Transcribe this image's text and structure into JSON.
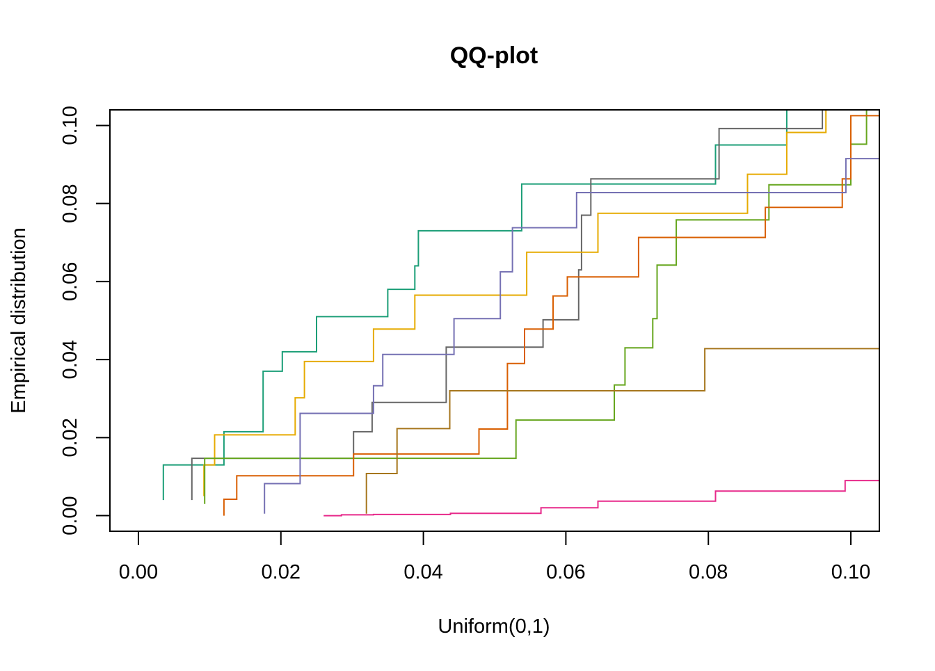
{
  "chart_data": {
    "type": "line",
    "step": true,
    "title": "QQ-plot",
    "xlabel": "Uniform(0,1)",
    "ylabel": "Empirical distribution",
    "xlim": [
      -0.004,
      0.104
    ],
    "ylim": [
      -0.004,
      0.104
    ],
    "x_ticks": [
      0.0,
      0.02,
      0.04,
      0.06,
      0.08,
      0.1
    ],
    "x_tick_labels": [
      "0.00",
      "0.02",
      "0.04",
      "0.06",
      "0.08",
      "0.10"
    ],
    "y_ticks": [
      0.0,
      0.02,
      0.04,
      0.06,
      0.08,
      0.1
    ],
    "y_tick_labels": [
      "0.00",
      "0.02",
      "0.04",
      "0.06",
      "0.08",
      "0.10"
    ],
    "grid": false,
    "legend": "none",
    "series": [
      {
        "color": "#1b9e77",
        "points": [
          [
            0.0035,
            0.004
          ],
          [
            0.0035,
            0.013
          ],
          [
            0.012,
            0.013
          ],
          [
            0.012,
            0.0215
          ],
          [
            0.0175,
            0.0215
          ],
          [
            0.0175,
            0.037
          ],
          [
            0.0202,
            0.037
          ],
          [
            0.0202,
            0.042
          ],
          [
            0.025,
            0.042
          ],
          [
            0.025,
            0.051
          ],
          [
            0.035,
            0.051
          ],
          [
            0.035,
            0.058
          ],
          [
            0.0388,
            0.058
          ],
          [
            0.0388,
            0.064
          ],
          [
            0.0393,
            0.064
          ],
          [
            0.0393,
            0.073
          ],
          [
            0.0538,
            0.073
          ],
          [
            0.0538,
            0.085
          ],
          [
            0.081,
            0.085
          ],
          [
            0.081,
            0.095
          ],
          [
            0.091,
            0.095
          ],
          [
            0.091,
            0.104
          ]
        ]
      },
      {
        "color": "#666666",
        "points": [
          [
            0.0075,
            0.004
          ],
          [
            0.0075,
            0.0147
          ],
          [
            0.0302,
            0.0147
          ],
          [
            0.0302,
            0.0215
          ],
          [
            0.0328,
            0.0215
          ],
          [
            0.0328,
            0.029
          ],
          [
            0.0432,
            0.029
          ],
          [
            0.0432,
            0.0432
          ],
          [
            0.0568,
            0.0432
          ],
          [
            0.0568,
            0.0502
          ],
          [
            0.0618,
            0.0502
          ],
          [
            0.0618,
            0.063
          ],
          [
            0.0622,
            0.063
          ],
          [
            0.0622,
            0.077
          ],
          [
            0.0635,
            0.077
          ],
          [
            0.0635,
            0.0863
          ],
          [
            0.0815,
            0.0863
          ],
          [
            0.0815,
            0.0992
          ],
          [
            0.096,
            0.0992
          ],
          [
            0.096,
            0.104
          ]
        ]
      },
      {
        "color": "#e6ab02",
        "points": [
          [
            0.0092,
            0.005
          ],
          [
            0.0092,
            0.013
          ],
          [
            0.0107,
            0.013
          ],
          [
            0.0107,
            0.0207
          ],
          [
            0.022,
            0.0207
          ],
          [
            0.022,
            0.0302
          ],
          [
            0.0233,
            0.0302
          ],
          [
            0.0233,
            0.0395
          ],
          [
            0.033,
            0.0395
          ],
          [
            0.033,
            0.0478
          ],
          [
            0.0388,
            0.0478
          ],
          [
            0.0388,
            0.0565
          ],
          [
            0.0545,
            0.0565
          ],
          [
            0.0545,
            0.0675
          ],
          [
            0.0645,
            0.0675
          ],
          [
            0.0645,
            0.0775
          ],
          [
            0.0855,
            0.0775
          ],
          [
            0.0855,
            0.0875
          ],
          [
            0.091,
            0.0875
          ],
          [
            0.091,
            0.0982
          ],
          [
            0.0965,
            0.0982
          ],
          [
            0.0965,
            0.104
          ]
        ]
      },
      {
        "color": "#66a61e",
        "points": [
          [
            0.0093,
            0.003
          ],
          [
            0.0093,
            0.0147
          ],
          [
            0.053,
            0.0147
          ],
          [
            0.053,
            0.0245
          ],
          [
            0.0668,
            0.0245
          ],
          [
            0.0668,
            0.0335
          ],
          [
            0.0683,
            0.0335
          ],
          [
            0.0683,
            0.043
          ],
          [
            0.0722,
            0.043
          ],
          [
            0.0722,
            0.0505
          ],
          [
            0.0728,
            0.0505
          ],
          [
            0.0728,
            0.0642
          ],
          [
            0.0755,
            0.0642
          ],
          [
            0.0755,
            0.0758
          ],
          [
            0.0885,
            0.0758
          ],
          [
            0.0885,
            0.0848
          ],
          [
            0.1,
            0.0848
          ],
          [
            0.1,
            0.0952
          ],
          [
            0.1022,
            0.0952
          ],
          [
            0.1022,
            0.104
          ]
        ]
      },
      {
        "color": "#d95f02",
        "points": [
          [
            0.012,
            0.0
          ],
          [
            0.012,
            0.0042
          ],
          [
            0.0138,
            0.0042
          ],
          [
            0.0138,
            0.0102
          ],
          [
            0.0302,
            0.0102
          ],
          [
            0.0302,
            0.0158
          ],
          [
            0.0478,
            0.0158
          ],
          [
            0.0478,
            0.0222
          ],
          [
            0.0518,
            0.0222
          ],
          [
            0.0518,
            0.039
          ],
          [
            0.0542,
            0.039
          ],
          [
            0.0542,
            0.0478
          ],
          [
            0.0582,
            0.0478
          ],
          [
            0.0582,
            0.0563
          ],
          [
            0.0602,
            0.0563
          ],
          [
            0.0602,
            0.0612
          ],
          [
            0.0702,
            0.0612
          ],
          [
            0.0702,
            0.0713
          ],
          [
            0.088,
            0.0713
          ],
          [
            0.088,
            0.079
          ],
          [
            0.0988,
            0.079
          ],
          [
            0.0988,
            0.0863
          ],
          [
            0.1,
            0.0863
          ],
          [
            0.1,
            0.1025
          ],
          [
            0.104,
            0.1025
          ]
        ]
      },
      {
        "color": "#7570b3",
        "points": [
          [
            0.0177,
            0.0005
          ],
          [
            0.0177,
            0.0082
          ],
          [
            0.0227,
            0.0082
          ],
          [
            0.0227,
            0.0262
          ],
          [
            0.033,
            0.0262
          ],
          [
            0.033,
            0.0333
          ],
          [
            0.0343,
            0.0333
          ],
          [
            0.0343,
            0.0413
          ],
          [
            0.0443,
            0.0413
          ],
          [
            0.0443,
            0.0505
          ],
          [
            0.0508,
            0.0505
          ],
          [
            0.0508,
            0.0625
          ],
          [
            0.0525,
            0.0625
          ],
          [
            0.0525,
            0.0738
          ],
          [
            0.0615,
            0.0738
          ],
          [
            0.0615,
            0.0828
          ],
          [
            0.0993,
            0.0828
          ],
          [
            0.0993,
            0.0915
          ],
          [
            0.104,
            0.0915
          ]
        ]
      },
      {
        "color": "#a6761d",
        "points": [
          [
            0.032,
            0.0005
          ],
          [
            0.032,
            0.0108
          ],
          [
            0.0363,
            0.0108
          ],
          [
            0.0363,
            0.0223
          ],
          [
            0.0437,
            0.0223
          ],
          [
            0.0437,
            0.032
          ],
          [
            0.0795,
            0.032
          ],
          [
            0.0795,
            0.0428
          ],
          [
            0.104,
            0.0428
          ]
        ]
      },
      {
        "color": "#e7298a",
        "points": [
          [
            0.026,
            0.0
          ],
          [
            0.0285,
            0.0
          ],
          [
            0.0285,
            0.0002
          ],
          [
            0.033,
            0.0002
          ],
          [
            0.033,
            0.0003
          ],
          [
            0.0438,
            0.0003
          ],
          [
            0.0438,
            0.0006
          ],
          [
            0.0565,
            0.0006
          ],
          [
            0.0565,
            0.002
          ],
          [
            0.0645,
            0.002
          ],
          [
            0.0645,
            0.0037
          ],
          [
            0.081,
            0.0037
          ],
          [
            0.081,
            0.0063
          ],
          [
            0.0992,
            0.0063
          ],
          [
            0.0992,
            0.009
          ],
          [
            0.104,
            0.009
          ]
        ]
      }
    ]
  }
}
